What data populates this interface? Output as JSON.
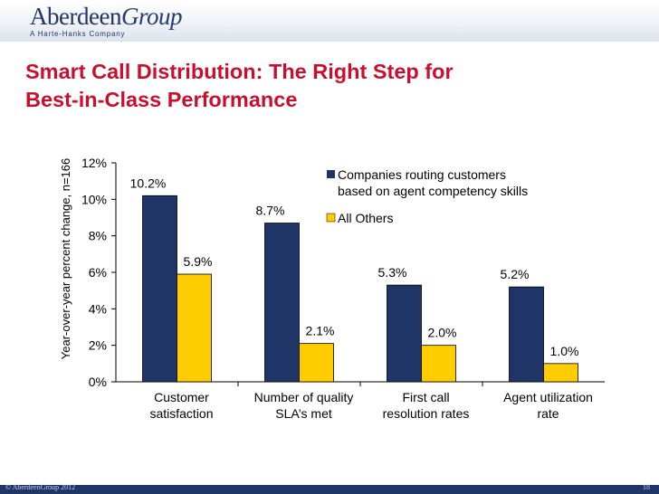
{
  "header": {
    "logo_main": "Aberdeen",
    "logo_group": "Group",
    "logo_sub": "A Harte-Hanks Company"
  },
  "slide": {
    "title_line1": "Smart Call Distribution: The Right Step for",
    "title_line2": "Best-in-Class Performance"
  },
  "footer": {
    "copyright": "© AberdeenGroup 2012",
    "page_number": "18"
  },
  "colors": {
    "title": "#c8102e",
    "series_1": "#1f3567",
    "series_2": "#ffcc00",
    "footer_bar": "#1f3567"
  },
  "chart_data": {
    "type": "bar",
    "ylabel": "Year-over-year percent change, n=166",
    "ylim": [
      0,
      12
    ],
    "yticks": [
      "0%",
      "2%",
      "4%",
      "6%",
      "8%",
      "10%",
      "12%"
    ],
    "categories": [
      [
        "Customer",
        "satisfaction"
      ],
      [
        "Number of quality",
        "SLA’s met"
      ],
      [
        "First call",
        "resolution rates"
      ],
      [
        "Agent utilization",
        "rate"
      ]
    ],
    "series": [
      {
        "name": [
          "Companies routing customers",
          "based on agent competency skills"
        ],
        "values": [
          10.2,
          8.7,
          5.3,
          5.2
        ],
        "labels": [
          "10.2%",
          "8.7%",
          "5.3%",
          "5.2%"
        ]
      },
      {
        "name": [
          "All Others"
        ],
        "values": [
          5.9,
          2.1,
          2.0,
          1.0
        ],
        "labels": [
          "5.9%",
          "2.1%",
          "2.0%",
          "1.0%"
        ]
      }
    ],
    "legend_position": "top-right",
    "grid": false
  }
}
